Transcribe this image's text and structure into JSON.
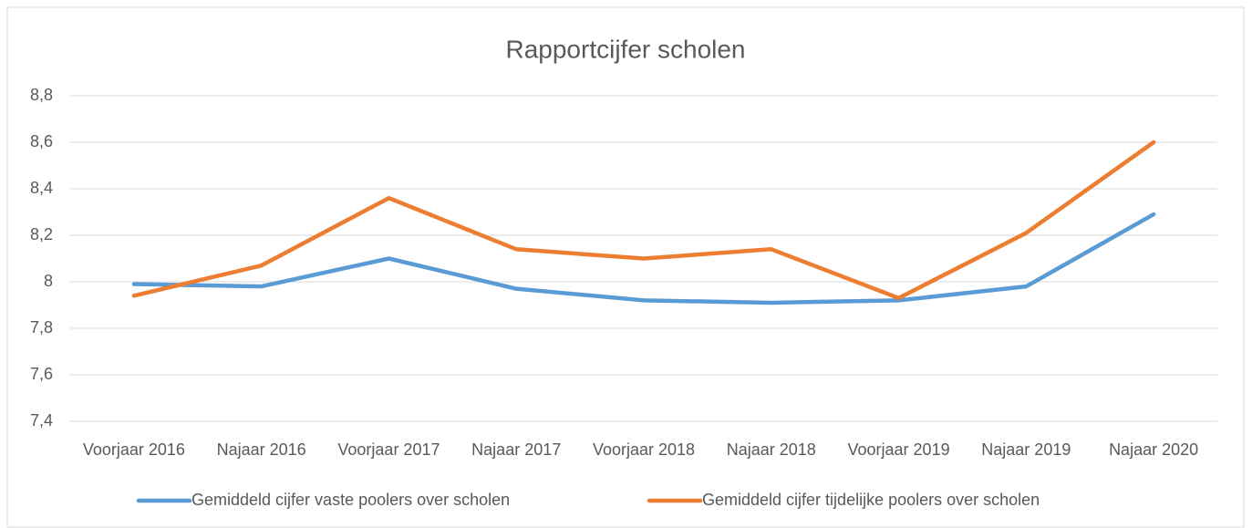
{
  "chart_data": {
    "type": "line",
    "title": "Rapportcijfer scholen",
    "categories": [
      "Voorjaar 2016",
      "Najaar 2016",
      "Voorjaar 2017",
      "Najaar 2017",
      "Voorjaar 2018",
      "Najaar 2018",
      "Voorjaar 2019",
      "Najaar 2019",
      "Najaar 2020"
    ],
    "series": [
      {
        "name": "Gemiddeld cijfer vaste poolers over scholen",
        "color": "#5b9bd5",
        "values": [
          7.99,
          7.98,
          8.1,
          7.97,
          7.92,
          7.91,
          7.92,
          7.98,
          8.29
        ]
      },
      {
        "name": "Gemiddeld cijfer tijdelijke poolers over scholen",
        "color": "#ed7d31",
        "values": [
          7.94,
          8.07,
          8.36,
          8.14,
          8.1,
          8.14,
          7.93,
          8.21,
          8.6
        ]
      }
    ],
    "ylim": [
      7.4,
      8.8
    ],
    "yticks": [
      {
        "value": 7.4,
        "label": "7,4"
      },
      {
        "value": 7.6,
        "label": "7,6"
      },
      {
        "value": 7.8,
        "label": "7,8"
      },
      8,
      {
        "value": 8.2,
        "label": "8,2"
      },
      {
        "value": 8.4,
        "label": "8,4"
      },
      {
        "value": 8.6,
        "label": "8,6"
      },
      {
        "value": 8.8,
        "label": "8,8"
      }
    ],
    "grid": true,
    "legend": "bottom"
  }
}
